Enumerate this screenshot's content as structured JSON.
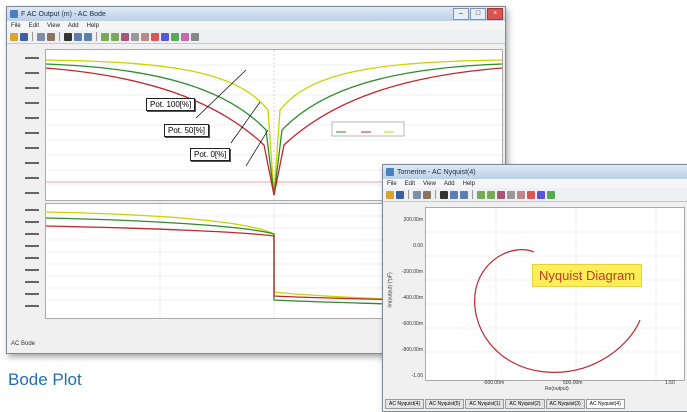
{
  "caption": "Bode Plot",
  "bode_window": {
    "title": "F AC Output (m) - AC Bode",
    "menu": [
      "File",
      "Edit",
      "View",
      "Add",
      "Help"
    ],
    "callouts": [
      "Pot. 100[%]",
      "Pot. 50[%]",
      "Pot. 0[%]"
    ],
    "status": "AC Bode",
    "legend_items": [
      "1/2",
      "1/2",
      "1/2"
    ]
  },
  "nyquist_window": {
    "title": "Tornerine - AC Nyquist(4)",
    "menu": [
      "File",
      "Edit",
      "View",
      "Add",
      "Help"
    ],
    "label": "Nyquist Diagram",
    "y_ticks": [
      "200.00m",
      "0.00",
      "-200.00m",
      "-400.00m",
      "-600.00m",
      "-800.00m",
      "-1.00"
    ],
    "x_ticks": [
      "-500.00m",
      "500.00m",
      "1.50"
    ],
    "x_label": "Re(output)",
    "y_label": "Im(output) (*pF)",
    "tabs": [
      "AC Nyquist(4)",
      "AC Nyquist(5)",
      "AC Nyquist(1)",
      "AC Nyquist(2)",
      "AC Nyquist(3)",
      "AC Nyquist(4)"
    ]
  },
  "colors": {
    "red": "#c0282d",
    "green": "#2e8b2e",
    "yellow_green": "#b8c800",
    "caption_blue": "#1f6fb5"
  }
}
